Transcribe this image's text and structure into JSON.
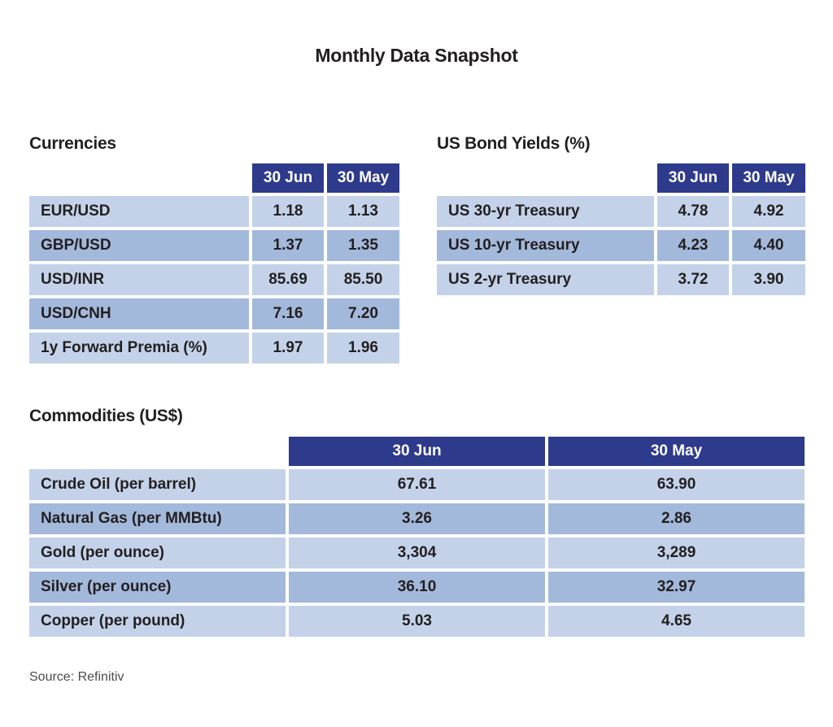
{
  "page": {
    "title": "Monthly Data Snapshot",
    "source": "Source: Refinitiv"
  },
  "colors": {
    "header_bg": "#2E3A8C",
    "header_text": "#FFFFFF",
    "row_light": "#C3D2E9",
    "row_dark": "#A3B9DB",
    "cell_text": "#231F20",
    "source_text": "#4D4D4D"
  },
  "chart_data": [
    {
      "type": "table",
      "title": "Currencies",
      "columns": [
        "30 Jun",
        "30 May"
      ],
      "rows": [
        [
          "EUR/USD",
          "1.18",
          "1.13"
        ],
        [
          "GBP/USD",
          "1.37",
          "1.35"
        ],
        [
          "USD/INR",
          "85.69",
          "85.50"
        ],
        [
          "USD/CNH",
          "7.16",
          "7.20"
        ],
        [
          "1y Forward Premia (%)",
          "1.97",
          "1.96"
        ]
      ]
    },
    {
      "type": "table",
      "title": "US Bond Yields (%)",
      "columns": [
        "30 Jun",
        "30 May"
      ],
      "rows": [
        [
          "US 30-yr Treasury",
          "4.78",
          "4.92"
        ],
        [
          "US 10-yr Treasury",
          "4.23",
          "4.40"
        ],
        [
          "US 2-yr Treasury",
          "3.72",
          "3.90"
        ]
      ]
    },
    {
      "type": "table",
      "title": "Commodities (US$)",
      "columns": [
        "30 Jun",
        "30 May"
      ],
      "rows": [
        [
          "Crude Oil (per barrel)",
          "67.61",
          "63.90"
        ],
        [
          "Natural Gas (per MMBtu)",
          "3.26",
          "2.86"
        ],
        [
          "Gold (per ounce)",
          "3,304",
          "3,289"
        ],
        [
          "Silver (per ounce)",
          "36.10",
          "32.97"
        ],
        [
          "Copper (per pound)",
          "5.03",
          "4.65"
        ]
      ]
    }
  ]
}
